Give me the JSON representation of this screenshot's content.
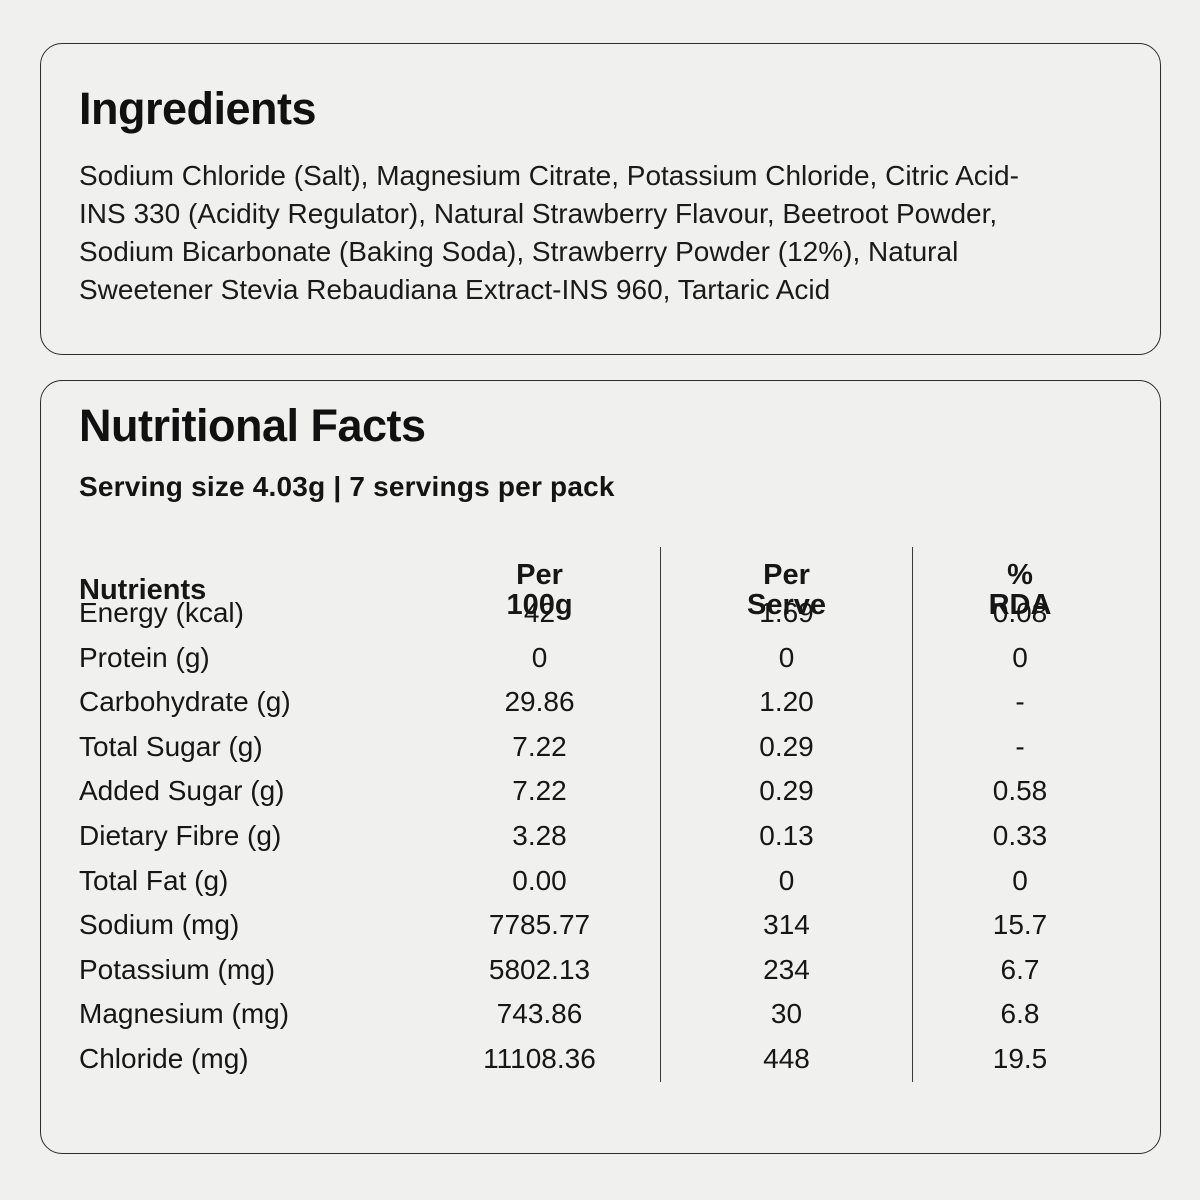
{
  "page": {
    "background": "#f0f0ef",
    "card_border_color": "#2d2d2d",
    "text_color": "#161616"
  },
  "ingredients_card": {
    "title": "Ingredients",
    "text": "Sodium Chloride (Salt), Magnesium Citrate, Potassium Chloride, Citric Acid-INS 330 (Acidity Regulator), Natural Strawberry Flavour, Beetroot Powder, Sodium Bicarbonate (Baking Soda), Strawberry Powder (12%), Natural Sweetener Stevia Rebaudiana Extract-INS 960, Tartaric Acid"
  },
  "nutrition_card": {
    "title": "Nutritional Facts",
    "serving_info": "Serving size 4.03g | 7 servings per pack",
    "table": {
      "columns": [
        {
          "label": "Nutrients"
        },
        {
          "line1": "Per",
          "line2": "100g"
        },
        {
          "line1": "Per",
          "line2": "Serve"
        },
        {
          "line1": "%",
          "line2": "RDA"
        }
      ],
      "rows": [
        {
          "name": "Energy (kcal)",
          "per_100g": "42",
          "per_serve": "1.69",
          "rda": "0.08"
        },
        {
          "name": "Protein (g)",
          "per_100g": "0",
          "per_serve": "0",
          "rda": "0"
        },
        {
          "name": "Carbohydrate (g)",
          "per_100g": "29.86",
          "per_serve": "1.20",
          "rda": "-"
        },
        {
          "name": "Total Sugar (g)",
          "per_100g": "7.22",
          "per_serve": "0.29",
          "rda": "-"
        },
        {
          "name": "Added Sugar (g)",
          "per_100g": "7.22",
          "per_serve": "0.29",
          "rda": "0.58"
        },
        {
          "name": "Dietary Fibre (g)",
          "per_100g": "3.28",
          "per_serve": "0.13",
          "rda": "0.33"
        },
        {
          "name": "Total Fat (g)",
          "per_100g": "0.00",
          "per_serve": "0",
          "rda": "0"
        },
        {
          "name": "Sodium (mg)",
          "per_100g": "7785.77",
          "per_serve": "314",
          "rda": "15.7"
        },
        {
          "name": "Potassium (mg)",
          "per_100g": "5802.13",
          "per_serve": "234",
          "rda": "6.7"
        },
        {
          "name": "Magnesium (mg)",
          "per_100g": "743.86",
          "per_serve": "30",
          "rda": "6.8"
        },
        {
          "name": "Chloride (mg)",
          "per_100g": "11108.36",
          "per_serve": "448",
          "rda": "19.5"
        }
      ]
    }
  }
}
